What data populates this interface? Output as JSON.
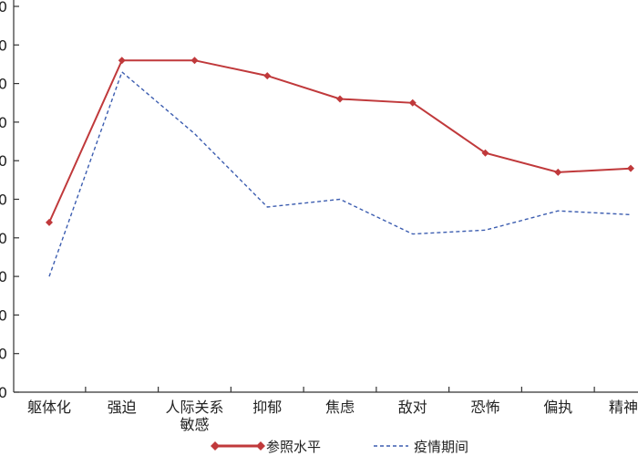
{
  "chart_data": {
    "type": "line",
    "categories": [
      [
        "躯体化"
      ],
      [
        "强迫"
      ],
      [
        "人际关系",
        "敏感"
      ],
      [
        "抑郁"
      ],
      [
        "焦虑"
      ],
      [
        "敌对"
      ],
      [
        "恐怖"
      ],
      [
        "偏执"
      ],
      [
        "精神病"
      ]
    ],
    "y_tick_labels": [
      "0",
      "0",
      "0",
      "0",
      "0",
      "0",
      "0",
      "0",
      "0",
      "0",
      "0"
    ],
    "ylim": [
      0,
      10
    ],
    "grid": false,
    "legend_position": "bottom",
    "series": [
      {
        "name": "参照水平",
        "color": "#c0393b",
        "style": "solid-diamond",
        "values": [
          4.4,
          8.6,
          8.6,
          8.2,
          7.6,
          7.5,
          6.2,
          5.7,
          5.8
        ]
      },
      {
        "name": "疫情期间",
        "color": "#3c5db0",
        "style": "dashed",
        "values": [
          3.0,
          8.3,
          6.7,
          4.8,
          5.0,
          4.1,
          4.2,
          4.7,
          4.6
        ]
      }
    ]
  }
}
